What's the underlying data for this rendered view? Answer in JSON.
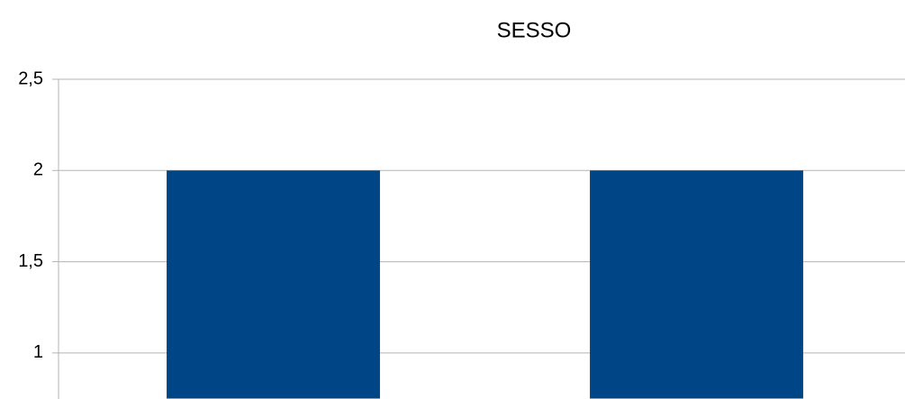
{
  "chart_data": {
    "type": "bar",
    "title": "SESSO",
    "categories": [
      null,
      null
    ],
    "values": [
      2,
      2
    ],
    "color": "#004586",
    "ylim": [
      0.75,
      2.5
    ],
    "yticks": [
      1,
      {
        "value": 1.5,
        "label": "1,5"
      },
      2,
      {
        "value": 2.5,
        "label": "2,5"
      }
    ],
    "grid": true
  }
}
